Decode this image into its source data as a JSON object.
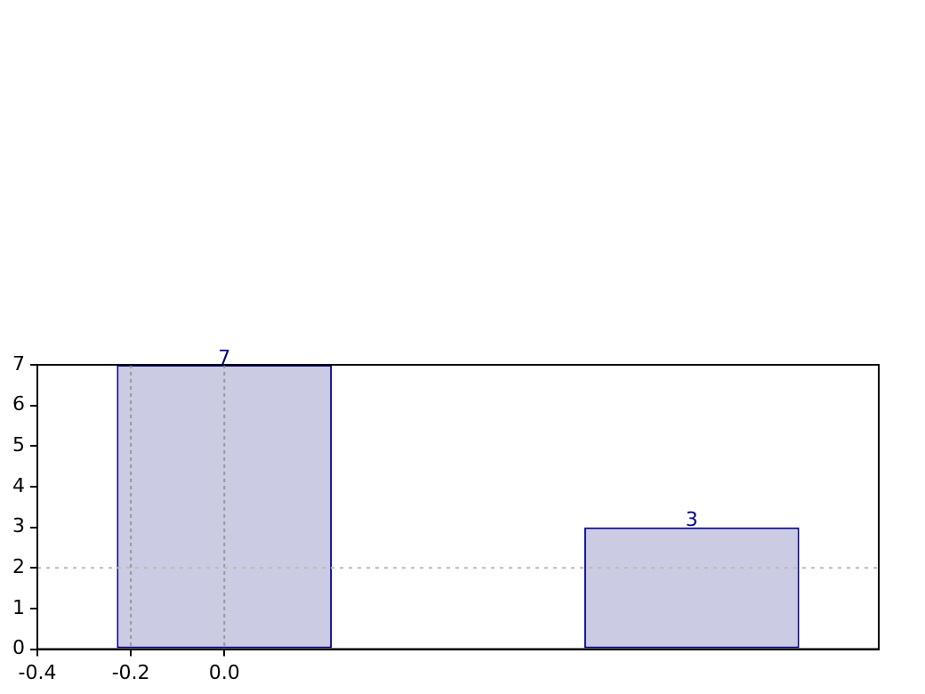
{
  "chart_data": {
    "type": "bar",
    "x": [
      0.0,
      1.0
    ],
    "values": [
      7,
      3
    ],
    "color": "#cbcbe3",
    "xlim": [
      -0.4,
      1.4
    ],
    "xticks": [
      -0.4,
      -0.2,
      {
        "value": 0,
        "label": "0.0"
      }
    ],
    "ylim": [
      0,
      7
    ],
    "yticks": [
      0,
      1,
      2,
      3,
      4,
      5,
      6,
      7
    ],
    "grid": "x",
    "ref_lines": [
      {
        "axis": "y",
        "value": 2
      }
    ],
    "data_labels": true,
    "legend": false
  }
}
